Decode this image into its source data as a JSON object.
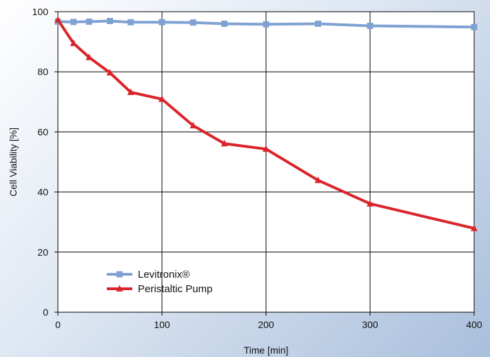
{
  "chart_data": {
    "type": "line",
    "title": "",
    "xlabel": "Time [min]",
    "ylabel": "Cell Viability [%]",
    "xlim": [
      0,
      400
    ],
    "ylim": [
      0,
      100
    ],
    "xticks": [
      0,
      100,
      200,
      300,
      400
    ],
    "yticks": [
      0,
      20,
      40,
      60,
      80,
      100
    ],
    "grid": true,
    "legend_position": "lower-left",
    "series": [
      {
        "name": "Levitronix®",
        "color": "#7fa2d3",
        "marker": "square",
        "x": [
          0,
          15,
          30,
          50,
          70,
          100,
          130,
          160,
          200,
          250,
          300,
          400
        ],
        "y": [
          96.7,
          96.6,
          96.7,
          96.9,
          96.5,
          96.5,
          96.4,
          96.0,
          95.8,
          96.0,
          95.3,
          94.9
        ]
      },
      {
        "name": "Peristaltic Pump",
        "color": "#d9252b",
        "marker": "triangle",
        "x": [
          0,
          15,
          30,
          50,
          70,
          100,
          130,
          160,
          200,
          250,
          300,
          400
        ],
        "y": [
          97.3,
          89.5,
          84.8,
          79.7,
          73.2,
          70.9,
          62.1,
          56.1,
          54.3,
          43.9,
          36.1,
          27.9
        ]
      }
    ]
  }
}
